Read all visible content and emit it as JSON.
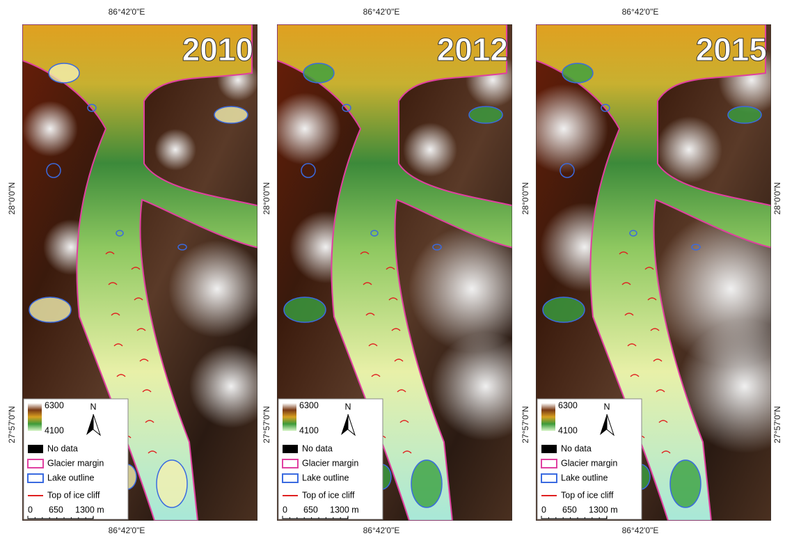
{
  "panels": [
    {
      "year": "2010",
      "top_lon": "86°42'0\"E",
      "bottom_lon": "86°42'0\"E",
      "left_lat": [
        "28°0'0\"N",
        "27°57'0\"N"
      ],
      "legend": {
        "max": "6300",
        "min": "4100",
        "north": "N",
        "items": [
          "No data",
          "Glacier margin",
          "Lake outline",
          "Top of ice cliff"
        ],
        "scale": [
          "0",
          "650",
          "1300 m"
        ]
      }
    },
    {
      "year": "2012",
      "top_lon": "86°42'0\"E",
      "bottom_lon": "86°42'0\"E",
      "left_lat": [
        "28°0'0\"N",
        "27°57'0\"N"
      ],
      "legend": {
        "max": "6300",
        "min": "4100",
        "north": "N",
        "items": [
          "No data",
          "Glacier margin",
          "Lake outline",
          "Top of ice cliff"
        ],
        "scale": [
          "0",
          "650",
          "1300 m"
        ]
      }
    },
    {
      "year": "2015",
      "top_lon": "86°42'0\"E",
      "bottom_lon": "86°42'0\"E",
      "left_lat": [
        "28°0'0\"N",
        "27°57'0\"N"
      ],
      "right_lat": [
        "28°0'0\"N",
        "27°57'0\"N"
      ],
      "legend": {
        "max": "6300",
        "min": "4100",
        "north": "N",
        "items": [
          "No data",
          "Glacier margin",
          "Lake outline",
          "Top of ice cliff"
        ],
        "scale": [
          "0",
          "650",
          "1300 m"
        ]
      }
    }
  ]
}
